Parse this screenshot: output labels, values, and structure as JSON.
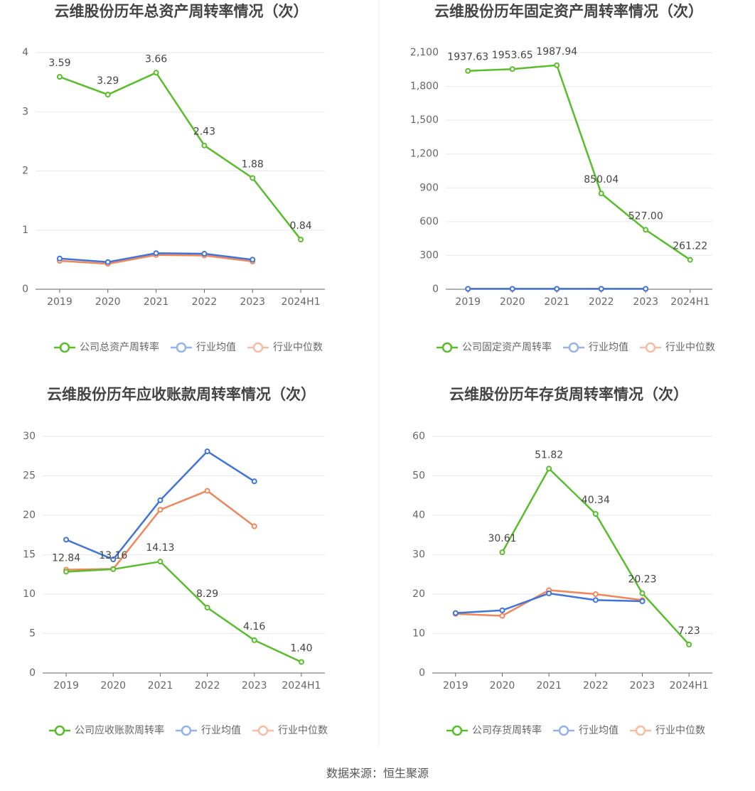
{
  "chart_data": [
    {
      "type": "line",
      "title": "云维股份历年总资产周转率情况（次）",
      "categories": [
        "2019",
        "2020",
        "2021",
        "2022",
        "2023",
        "2024H1"
      ],
      "series": [
        {
          "name": "公司总资产周转率",
          "color": "#58bd2a",
          "values": [
            3.59,
            3.29,
            3.66,
            2.43,
            1.88,
            0.84
          ],
          "value_labels": [
            "3.59",
            "3.29",
            "3.66",
            "2.43",
            "1.88",
            "0.84"
          ]
        },
        {
          "name": "行业均值",
          "color": "#3f74d9",
          "values": [
            0.52,
            0.46,
            0.61,
            0.6,
            0.5,
            null
          ]
        },
        {
          "name": "行业中位数",
          "color": "#f0875a",
          "values": [
            0.48,
            0.43,
            0.58,
            0.57,
            0.47,
            null
          ]
        }
      ],
      "ylim": [
        0,
        4
      ],
      "yticks": [
        0,
        1,
        2,
        3,
        4
      ],
      "grid": true,
      "legend": "bottom"
    },
    {
      "type": "line",
      "title": "云维股份历年固定资产周转率情况（次）",
      "categories": [
        "2019",
        "2020",
        "2021",
        "2022",
        "2023",
        "2024H1"
      ],
      "series": [
        {
          "name": "公司固定资产周转率",
          "color": "#58bd2a",
          "values": [
            1937.63,
            1953.65,
            1987.94,
            850.04,
            527.0,
            261.22
          ],
          "value_labels": [
            "1937.63",
            "1953.65",
            "1987.94",
            "850.04",
            "527.00",
            "261.22"
          ]
        },
        {
          "name": "行业均值",
          "color": "#3f74d9",
          "values": [
            4,
            4,
            4,
            4,
            4,
            null
          ]
        },
        {
          "name": "行业中位数",
          "color": "#f0875a",
          "values": [
            3,
            3,
            3,
            3,
            3,
            null
          ]
        }
      ],
      "ylim": [
        0,
        2100
      ],
      "yticks": [
        0,
        300,
        600,
        900,
        {
          "value": 1200,
          "label": "1,200"
        },
        {
          "value": 1500,
          "label": "1,500"
        },
        {
          "value": 1800,
          "label": "1,800"
        },
        {
          "value": 2100,
          "label": "2,100"
        }
      ],
      "grid": true,
      "legend": "bottom"
    },
    {
      "type": "line",
      "title": "云维股份历年应收账款周转率情况（次）",
      "categories": [
        "2019",
        "2020",
        "2021",
        "2022",
        "2023",
        "2024H1"
      ],
      "series": [
        {
          "name": "公司应收账款周转率",
          "color": "#58bd2a",
          "values": [
            12.84,
            13.16,
            14.13,
            8.29,
            4.16,
            1.4
          ],
          "value_labels": [
            "12.84",
            "13.16",
            "14.13",
            "8.29",
            "4.16",
            "1.40"
          ]
        },
        {
          "name": "行业均值",
          "color": "#3f74d9",
          "values": [
            16.9,
            14.4,
            21.9,
            28.1,
            24.3,
            null
          ]
        },
        {
          "name": "行业中位数",
          "color": "#f0875a",
          "values": [
            13.1,
            13.2,
            20.7,
            23.1,
            18.6,
            null
          ]
        }
      ],
      "ylim": [
        0,
        30
      ],
      "yticks": [
        0,
        5,
        10,
        15,
        20,
        25,
        30
      ],
      "grid": true,
      "legend": "bottom"
    },
    {
      "type": "line",
      "title": "云维股份历年存货周转率情况（次）",
      "categories": [
        "2019",
        "2020",
        "2021",
        "2022",
        "2023",
        "2024H1"
      ],
      "series": [
        {
          "name": "公司存货周转率",
          "color": "#58bd2a",
          "values": [
            null,
            30.61,
            51.82,
            40.34,
            20.23,
            7.23
          ],
          "value_labels": [
            null,
            "30.61",
            "51.82",
            "40.34",
            "20.23",
            "7.23"
          ]
        },
        {
          "name": "行业均值",
          "color": "#3f74d9",
          "values": [
            15.2,
            15.9,
            20.2,
            18.5,
            18.2,
            null
          ]
        },
        {
          "name": "行业中位数",
          "color": "#f0875a",
          "values": [
            15.0,
            14.5,
            21.0,
            20.0,
            18.5,
            null
          ]
        }
      ],
      "ylim": [
        0,
        60
      ],
      "yticks": [
        0,
        10,
        20,
        30,
        40,
        50,
        60
      ],
      "grid": true,
      "legend": "bottom"
    }
  ],
  "footer": "数据来源：恒生聚源"
}
